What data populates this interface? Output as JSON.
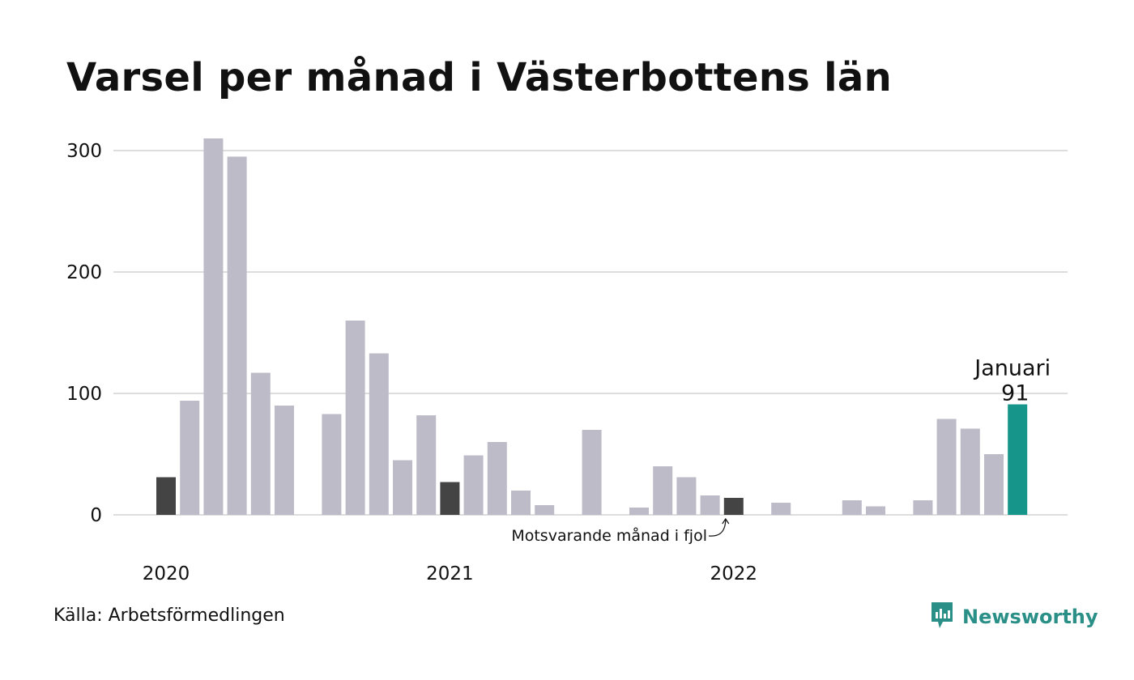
{
  "title": "Varsel per månad i Västerbottens län",
  "source": "Källa: Arbetsförmedlingen",
  "brand": {
    "name": "Newsworthy",
    "icon": "newsworthy-logo-icon",
    "color": "#2a8f86"
  },
  "colors": {
    "bar": "#bdbbc8",
    "previous_year": "#444444",
    "highlight": "#16968a",
    "grid": "#dddddd"
  },
  "chart_data": {
    "type": "bar",
    "title": "Varsel per månad i Västerbottens län",
    "xlabel": "",
    "ylabel": "",
    "ylim": [
      0,
      310
    ],
    "yticks": [
      0,
      100,
      200,
      300
    ],
    "grid": true,
    "legend": "none",
    "x_tick_labels": [
      {
        "label": "2020",
        "index": 0
      },
      {
        "label": "2021",
        "index": 12
      },
      {
        "label": "2022",
        "index": 24
      }
    ],
    "months": [
      "2020-01",
      "2020-02",
      "2020-03",
      "2020-04",
      "2020-05",
      "2020-06",
      "2020-07",
      "2020-08",
      "2020-09",
      "2020-10",
      "2020-11",
      "2020-12",
      "2021-01",
      "2021-02",
      "2021-03",
      "2021-04",
      "2021-05",
      "2021-06",
      "2021-07",
      "2021-08",
      "2021-09",
      "2021-10",
      "2021-11",
      "2021-12",
      "2022-01",
      "2022-02",
      "2022-03",
      "2022-04",
      "2022-05",
      "2022-06",
      "2022-07",
      "2022-08",
      "2022-09",
      "2022-10",
      "2022-11",
      "2022-12",
      "2023-01"
    ],
    "values": [
      31,
      94,
      310,
      295,
      117,
      90,
      0,
      83,
      160,
      133,
      45,
      82,
      27,
      49,
      60,
      20,
      8,
      0,
      70,
      0,
      6,
      40,
      31,
      16,
      14,
      0,
      10,
      0,
      0,
      12,
      7,
      0,
      12,
      79,
      71,
      50,
      91
    ],
    "previous_year_indices": [
      0,
      12,
      24
    ],
    "highlight_index": 36,
    "highlight_label": {
      "month": "Januari",
      "value": "91"
    },
    "annotation": {
      "text": "Motsvarande månad i fjol",
      "target_index": 24
    }
  }
}
